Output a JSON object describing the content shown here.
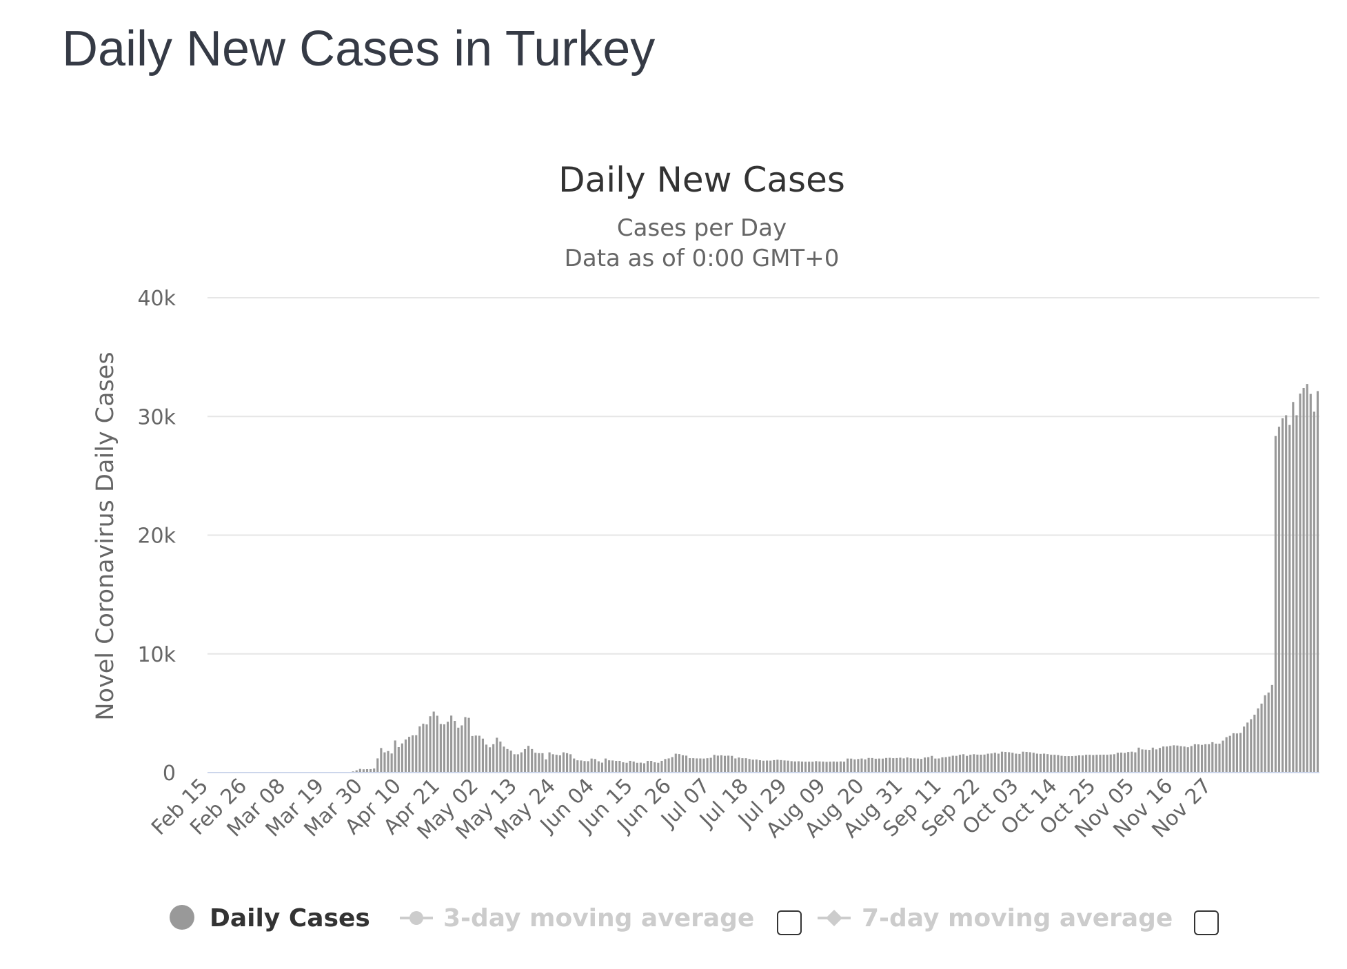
{
  "page": {
    "title": "Daily New Cases in Turkey"
  },
  "chart_data": {
    "type": "bar",
    "title": "Daily New Cases",
    "subtitle_lines": [
      "Cases per Day",
      "Data as of 0:00 GMT+0"
    ],
    "ylabel": "Novel Coronavirus Daily Cases",
    "ylim": [
      0,
      40000
    ],
    "ytick_values": [
      0,
      10000,
      20000,
      30000,
      40000
    ],
    "ytick_labels": [
      "0",
      "10k",
      "20k",
      "30k",
      "40k"
    ],
    "x_start": "2020-02-15",
    "x_end": "2020-12-05",
    "xtick_labels": [
      "Feb 15",
      "Feb 26",
      "Mar 08",
      "Mar 19",
      "Mar 30",
      "Apr 10",
      "Apr 21",
      "May 02",
      "May 13",
      "May 24",
      "Jun 04",
      "Jun 15",
      "Jun 26",
      "Jul 07",
      "Jul 18",
      "Jul 29",
      "Aug 09",
      "Aug 20",
      "Aug 31",
      "Sep 11",
      "Sep 22",
      "Oct 03",
      "Oct 14",
      "Oct 25",
      "Nov 05",
      "Nov 16",
      "Nov 27"
    ],
    "grid": true,
    "bar_color": "#999999",
    "series": [
      {
        "name": "Daily Cases",
        "values": [
          0,
          0,
          0,
          0,
          0,
          0,
          0,
          0,
          0,
          0,
          0,
          0,
          0,
          0,
          0,
          0,
          0,
          0,
          0,
          0,
          0,
          0,
          0,
          0,
          0,
          0,
          0,
          0,
          0,
          0,
          0,
          0,
          0,
          0,
          0,
          1,
          0,
          5,
          12,
          29,
          47,
          98,
          191,
          311,
          277,
          289,
          293,
          343,
          1196,
          2069,
          1704,
          1815,
          1610,
          2704,
          2148,
          2456,
          2786,
          3013,
          3135,
          3148,
          3892,
          4117,
          4056,
          4747,
          5138,
          4789,
          4093,
          4062,
          4281,
          4801,
          4353,
          3783,
          3977,
          4674,
          4611,
          3083,
          3122,
          3105,
          2861,
          2357,
          2131,
          2392,
          2936,
          2615,
          2188,
          1983,
          1848,
          1546,
          1542,
          1704,
          1977,
          2253,
          1982,
          1670,
          1639,
          1635,
          1114,
          1704,
          1546,
          1502,
          1452,
          1708,
          1634,
          1546,
          1186,
          1035,
          1022,
          972,
          961,
          1182,
          1141,
          952,
          839,
          1186,
          1035,
          1022,
          983,
          987,
          867,
          827,
          989,
          930,
          826,
          839,
          786,
          983,
          987,
          867,
          827,
          989,
          1141,
          1195,
          1304,
          1592,
          1562,
          1459,
          1429,
          1214,
          1212,
          1195,
          1192,
          1182,
          1210,
          1248,
          1492,
          1429,
          1458,
          1414,
          1429,
          1410,
          1192,
          1266,
          1212,
          1210,
          1148,
          1086,
          1101,
          1041,
          1002,
          1016,
          1009,
          1050,
          1083,
          1053,
          1024,
          1008,
          963,
          937,
          953,
          927,
          913,
          919,
          915,
          963,
          937,
          926,
          904,
          919,
          932,
          913,
          938,
          921,
          1183,
          1178,
          1112,
          1145,
          1185,
          1111,
          1233,
          1226,
          1168,
          1183,
          1178,
          1232,
          1245,
          1214,
          1226,
          1256,
          1198,
          1273,
          1212,
          1192,
          1182,
          1153,
          1269,
          1298,
          1409,
          1183,
          1190,
          1287,
          1305,
          1351,
          1423,
          1412,
          1502,
          1549,
          1412,
          1502,
          1549,
          1512,
          1509,
          1517,
          1592,
          1612,
          1671,
          1596,
          1761,
          1742,
          1716,
          1671,
          1596,
          1574,
          1761,
          1742,
          1716,
          1671,
          1596,
          1576,
          1597,
          1557,
          1502,
          1501,
          1476,
          1416,
          1391,
          1390,
          1391,
          1410,
          1455,
          1444,
          1502,
          1501,
          1476,
          1502,
          1501,
          1508,
          1502,
          1526,
          1549,
          1672,
          1686,
          1656,
          1734,
          1761,
          1707,
          2102,
          1953,
          1931,
          1913,
          2102,
          1953,
          2079,
          2198,
          2198,
          2247,
          2301,
          2278,
          2225,
          2196,
          2137,
          2236,
          2390,
          2376,
          2336,
          2391,
          2390,
          2562,
          2436,
          2436,
          2693,
          2983,
          3099,
          3316,
          3297,
          3341,
          3877,
          4215,
          4500,
          4876,
          5407,
          5811,
          6514,
          6745,
          7381,
          28351,
          29132,
          29845,
          30103,
          29281,
          31219,
          30103,
          31923,
          32395,
          32736,
          31896,
          30400,
          32137
        ]
      }
    ],
    "legend": [
      {
        "label": "Daily Cases",
        "state": "on"
      },
      {
        "label": "3-day moving average",
        "state": "off"
      },
      {
        "label": "7-day moving average",
        "state": "off"
      }
    ]
  }
}
